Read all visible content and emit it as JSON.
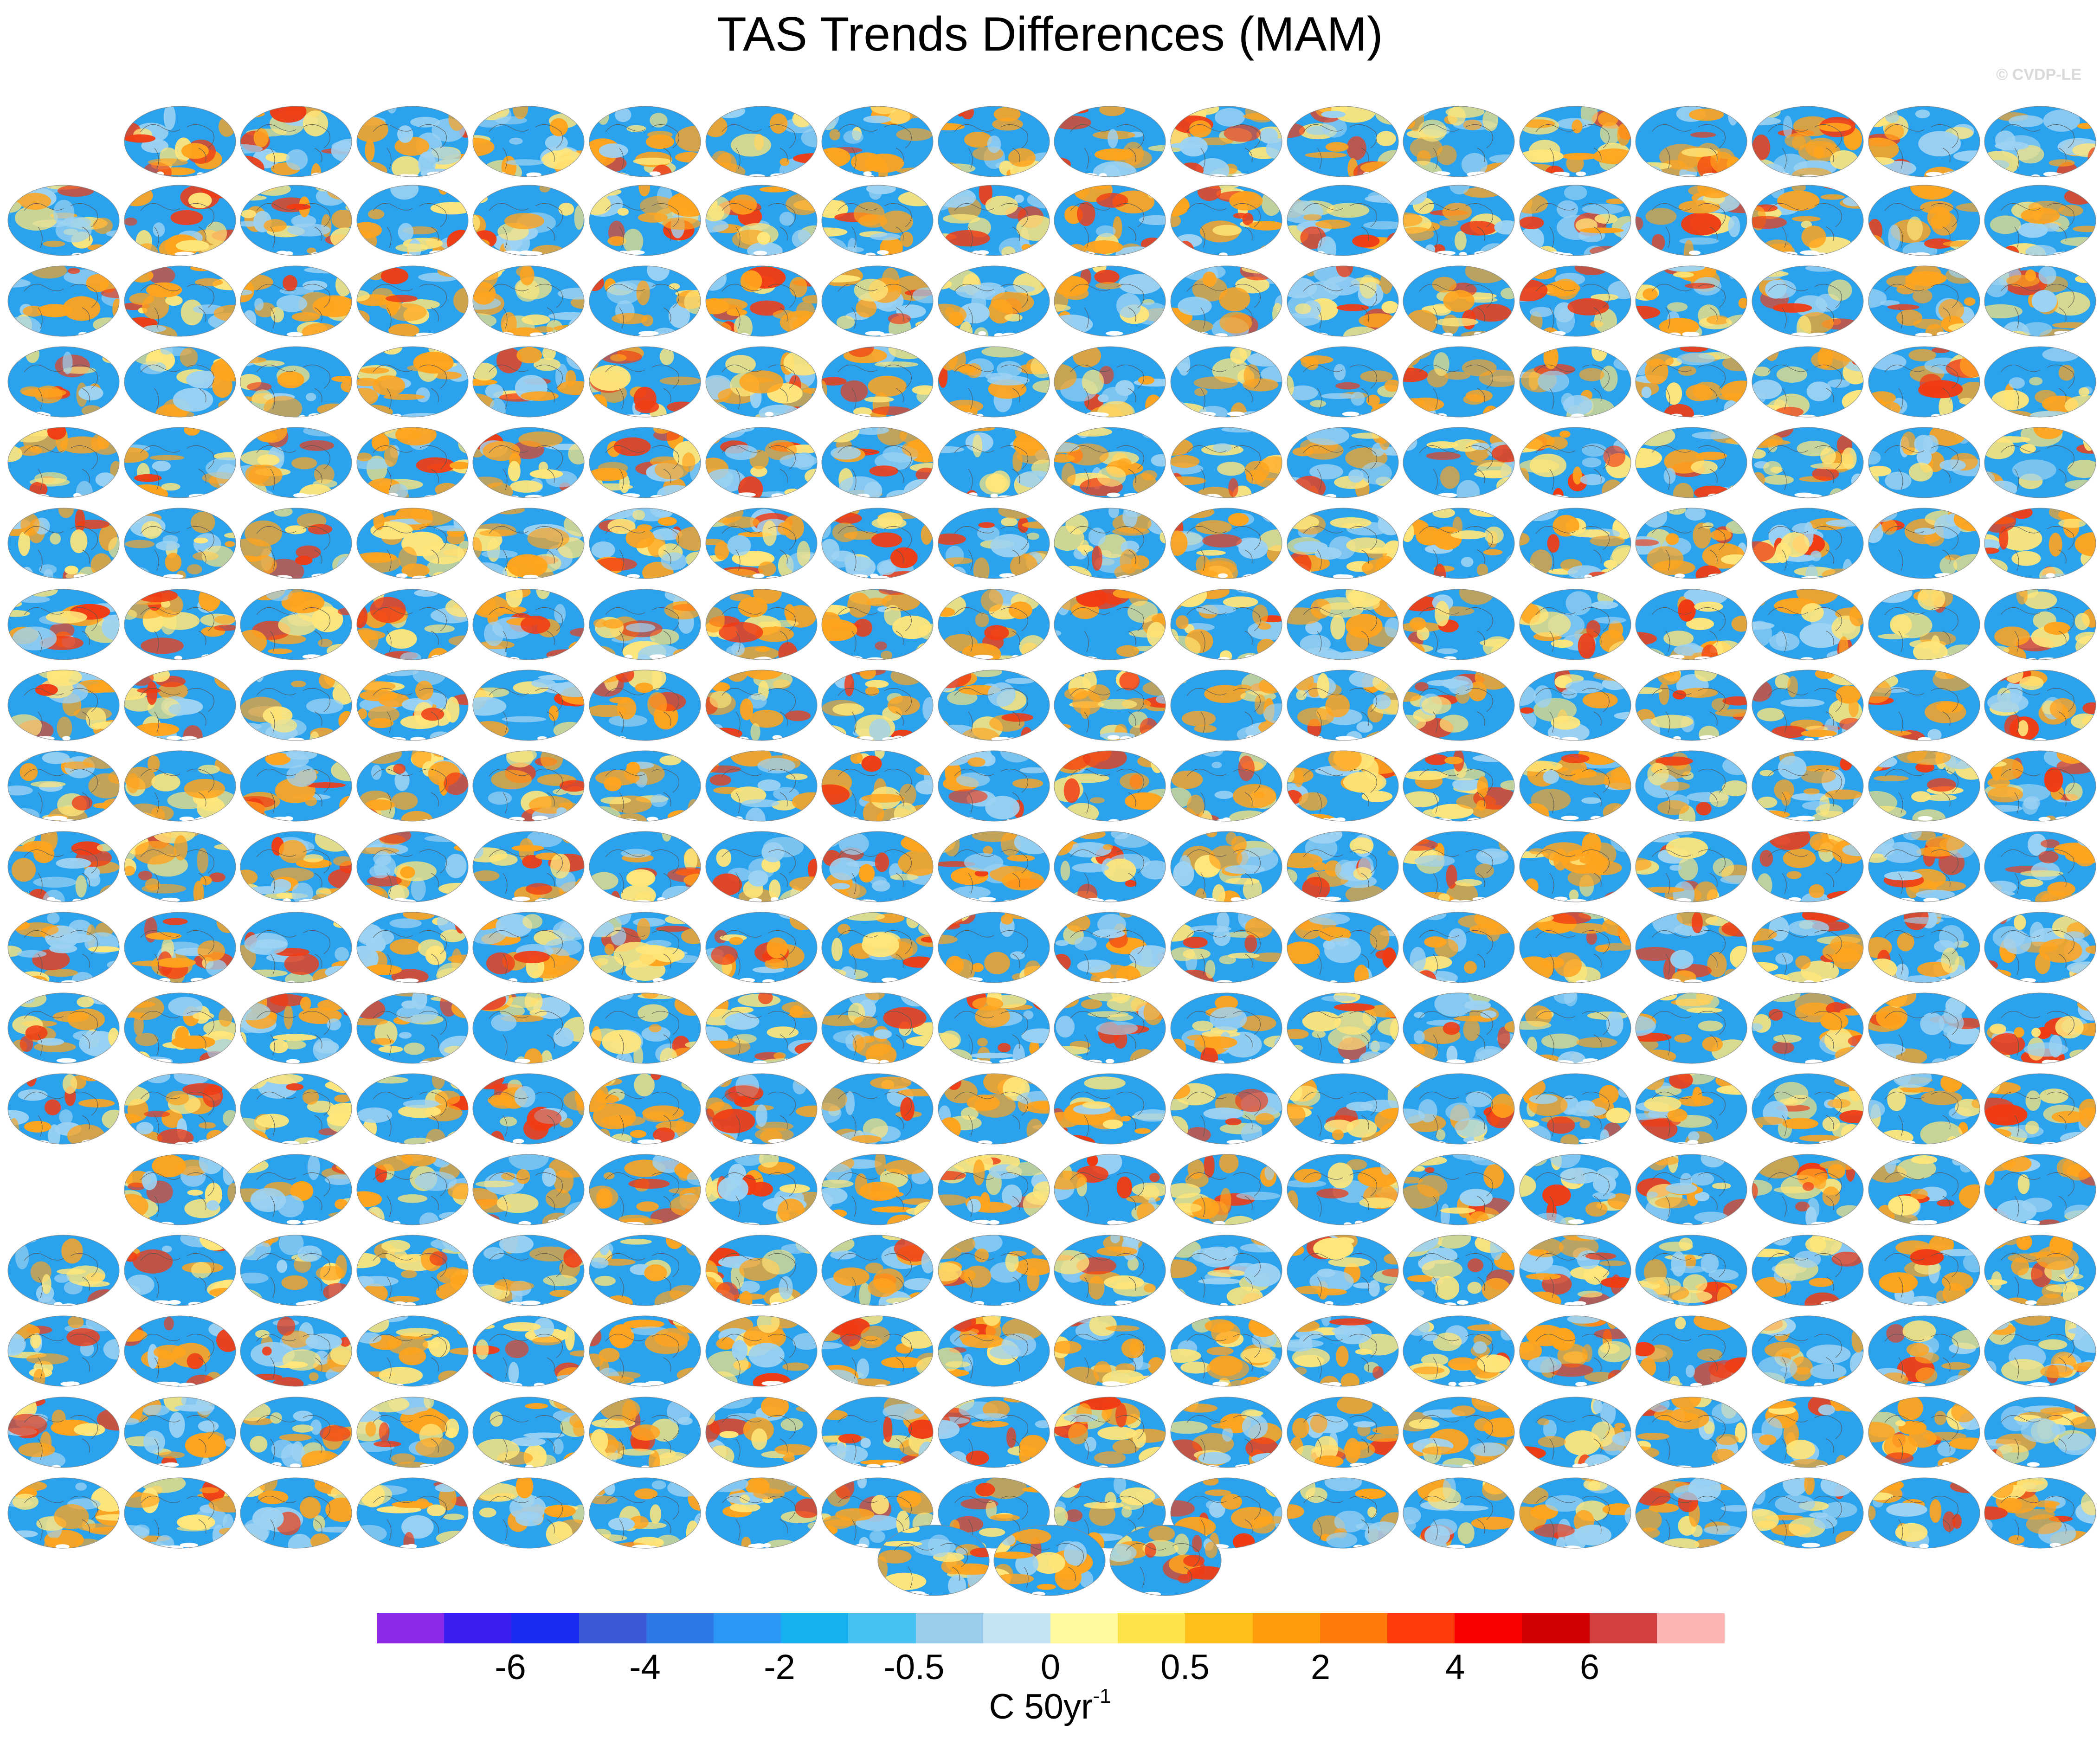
{
  "title": "TAS Trends Differences (MAM)",
  "credit": "© CVDP-LE",
  "colorbar": {
    "colors": [
      "#8b2be8",
      "#3a1ff0",
      "#1a2cf0",
      "#3a5ad8",
      "#2f78e8",
      "#2b96f5",
      "#14b0f0",
      "#45c2f2",
      "#9accec",
      "#c5e2f2",
      "#fffaa0",
      "#ffe34a",
      "#ffbf1a",
      "#ff9c0a",
      "#ff7a0a",
      "#ff3c0a",
      "#fa0000",
      "#d20000",
      "#d44040",
      "#ffb4b4"
    ],
    "tick_labels": [
      "-6",
      "-4",
      "-2",
      "-0.5",
      "0",
      "0.5",
      "2",
      "4",
      "6"
    ],
    "units_main": "C 50yr",
    "units_sup": "-1"
  },
  "panel_palette": {
    "base": "#2aa2ee",
    "light": "#9dd2f2",
    "yellow": "#ffe67a",
    "orange": "#ffa41e",
    "red": "#f03c14"
  }
}
